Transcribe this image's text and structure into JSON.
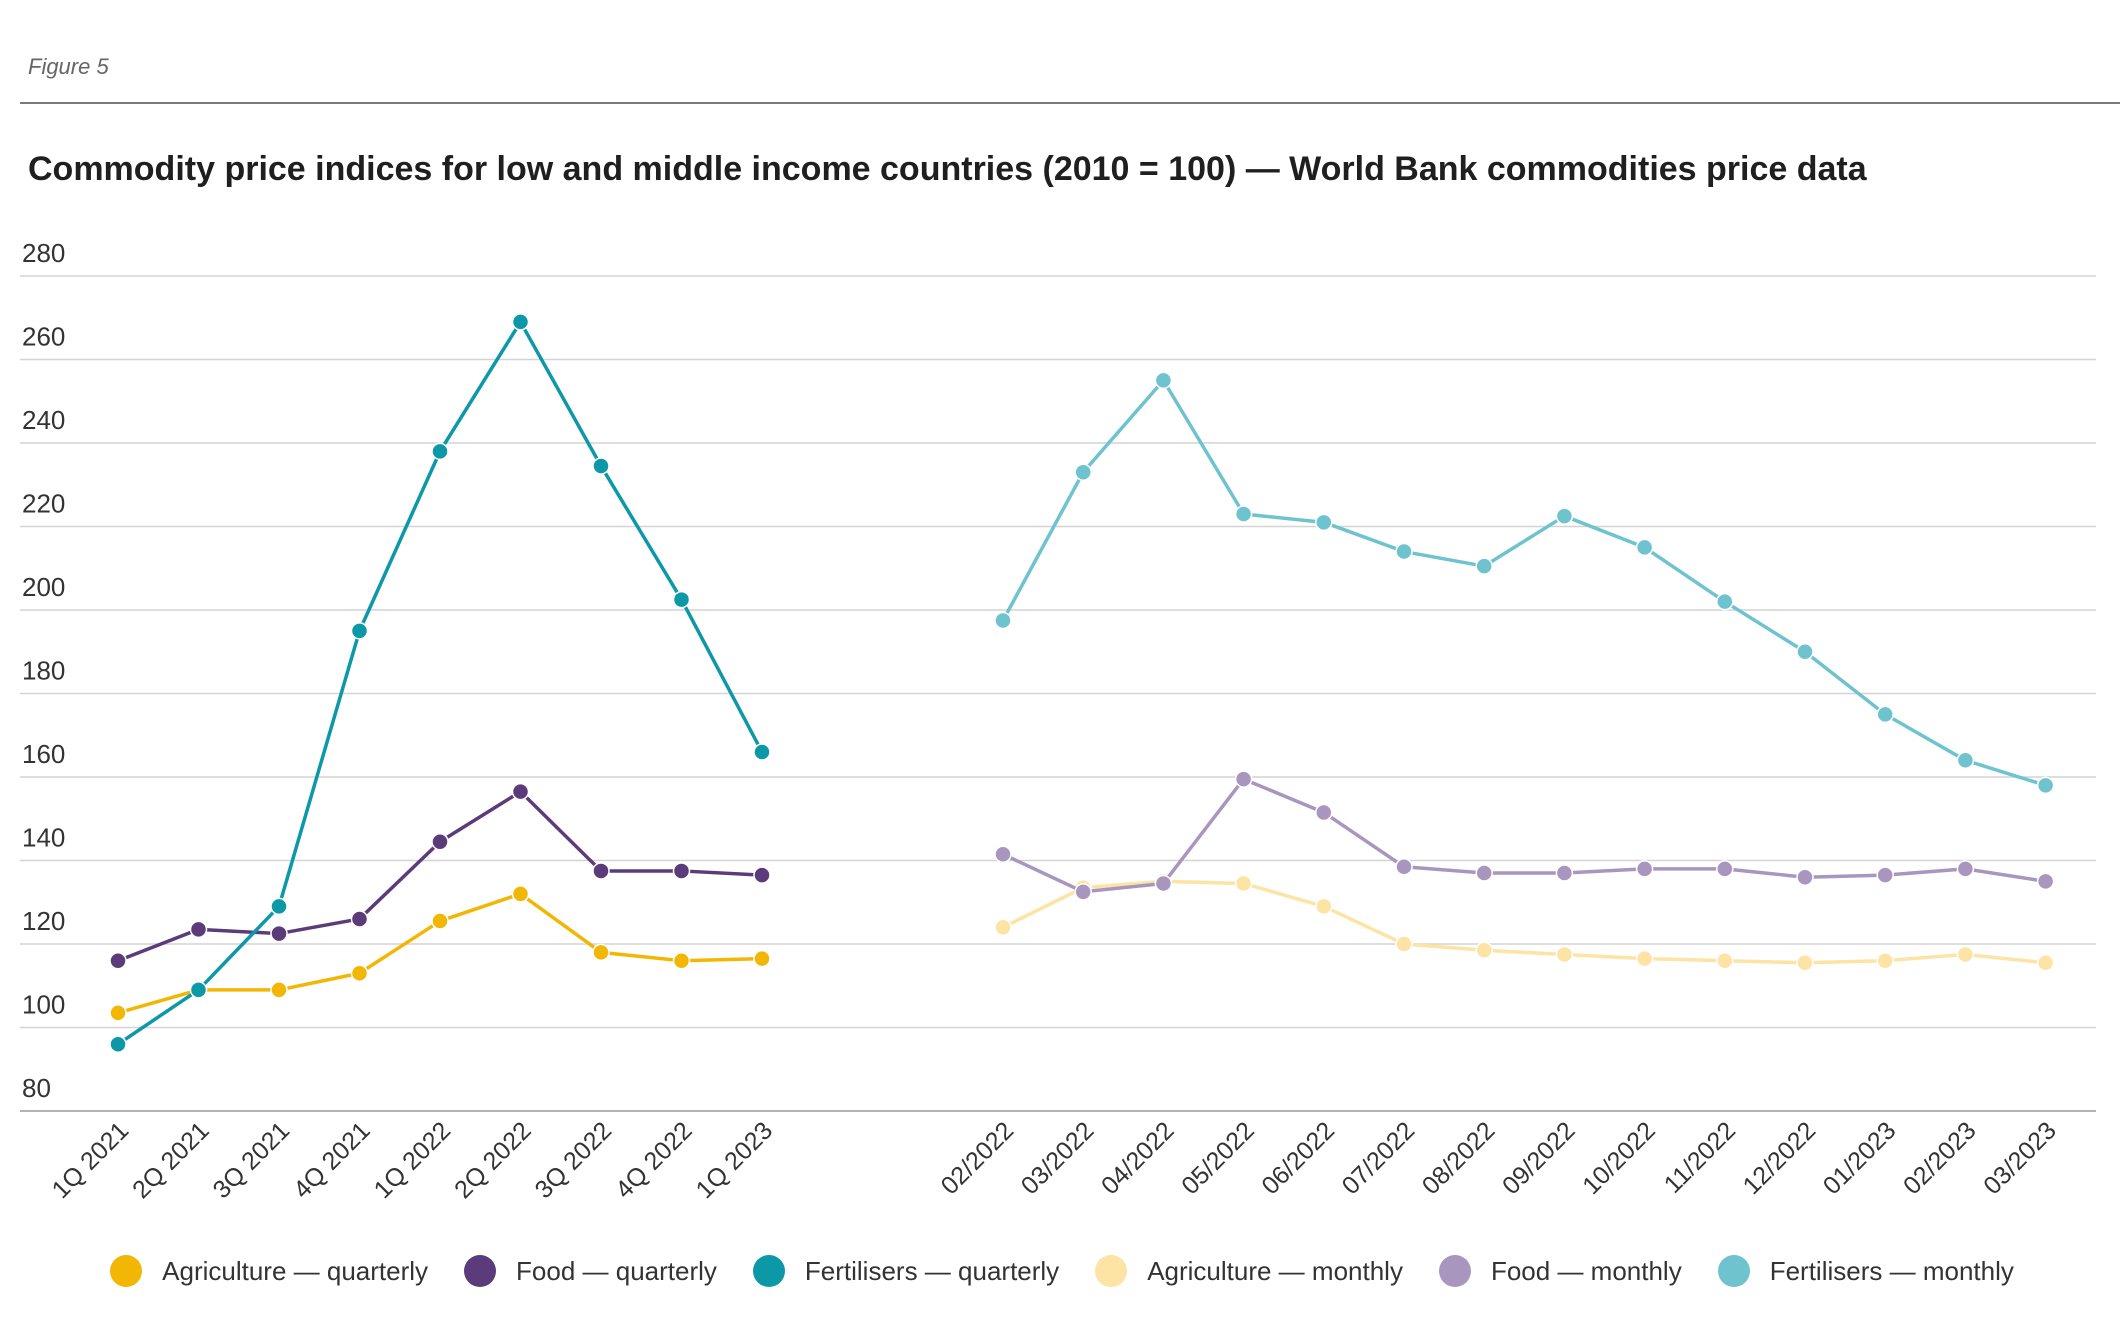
{
  "figure_label": "Figure 5",
  "chart_data": {
    "type": "line",
    "title": "Commodity price indices for low and middle income countries (2010 = 100) — World Bank commodities price data",
    "ylim": [
      80,
      280
    ],
    "yticks": [
      80,
      100,
      120,
      140,
      160,
      180,
      200,
      220,
      240,
      260,
      280
    ],
    "grid": true,
    "legend_position": "bottom",
    "groups": [
      {
        "categories": [
          "1Q 2021",
          "2Q 2021",
          "3Q 2021",
          "4Q 2021",
          "1Q 2022",
          "2Q 2022",
          "3Q 2022",
          "4Q 2022",
          "1Q 2023"
        ],
        "series": [
          {
            "name": "Agriculture — quarterly",
            "color": "#f2b705",
            "values": [
              103.5,
              109,
              109,
              113,
              125.5,
              132,
              118,
              116,
              116.5
            ]
          },
          {
            "name": "Food — quarterly",
            "color": "#5c3b7a",
            "values": [
              116,
              123.5,
              122.5,
              126,
              144.5,
              156.5,
              137.5,
              137.5,
              136.5
            ]
          },
          {
            "name": "Fertilisers — quarterly",
            "color": "#0d98a8",
            "values": [
              96,
              109,
              129,
              195,
              238,
              269,
              234.5,
              202.5,
              166
            ]
          }
        ]
      },
      {
        "categories": [
          "02/2022",
          "03/2022",
          "04/2022",
          "05/2022",
          "06/2022",
          "07/2022",
          "08/2022",
          "09/2022",
          "10/2022",
          "11/2022",
          "12/2022",
          "01/2023",
          "02/2023",
          "03/2023"
        ],
        "series": [
          {
            "name": "Agriculture — monthly",
            "color": "#fde3a4",
            "values": [
              124,
              133.5,
              135,
              134.5,
              129,
              120,
              118.5,
              117.5,
              116.5,
              116,
              115.5,
              116,
              117.5,
              115.5
            ]
          },
          {
            "name": "Food — monthly",
            "color": "#a996bf",
            "values": [
              141.5,
              132.5,
              134.5,
              159.5,
              151.5,
              138.5,
              137,
              137,
              138,
              138,
              136,
              136.5,
              138,
              135
            ]
          },
          {
            "name": "Fertilisers — monthly",
            "color": "#6ec3cf",
            "values": [
              197.5,
              233,
              255,
              223,
              221,
              214,
              210.5,
              222.5,
              215,
              202,
              190,
              175,
              164,
              158
            ]
          }
        ]
      }
    ],
    "legend": [
      {
        "label": "Agriculture — quarterly",
        "color": "#f2b705"
      },
      {
        "label": "Food — quarterly",
        "color": "#5c3b7a"
      },
      {
        "label": "Fertilisers — quarterly",
        "color": "#0d98a8"
      },
      {
        "label": "Agriculture — monthly",
        "color": "#fde3a4"
      },
      {
        "label": "Food — monthly",
        "color": "#a996bf"
      },
      {
        "label": "Fertilisers — monthly",
        "color": "#6ec3cf"
      }
    ]
  }
}
